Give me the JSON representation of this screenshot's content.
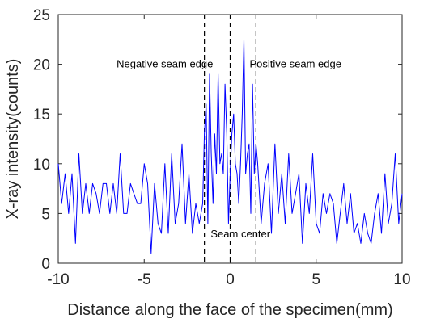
{
  "chart_data": {
    "type": "line",
    "title": "",
    "xlabel": "Distance along the face of the specimen(mm)",
    "ylabel": "X-ray intensity(counts)",
    "xlim": [
      -10,
      10
    ],
    "ylim": [
      0,
      25
    ],
    "x_ticks": [
      -10,
      -5,
      0,
      5,
      10
    ],
    "y_ticks": [
      0,
      5,
      10,
      15,
      20,
      25
    ],
    "grid": false,
    "legend": "none",
    "series": [
      {
        "color": "#0000ff",
        "x": [
          -10,
          -9.8,
          -9.6,
          -9.4,
          -9.2,
          -9,
          -8.8,
          -8.6,
          -8.4,
          -8.2,
          -8,
          -7.8,
          -7.6,
          -7.4,
          -7.2,
          -7,
          -6.8,
          -6.6,
          -6.4,
          -6.2,
          -6,
          -5.8,
          -5.6,
          -5.4,
          -5.2,
          -5,
          -4.8,
          -4.6,
          -4.4,
          -4.2,
          -4,
          -3.8,
          -3.6,
          -3.4,
          -3.2,
          -3,
          -2.8,
          -2.6,
          -2.4,
          -2.2,
          -2,
          -1.8,
          -1.6,
          -1.5,
          -1.4,
          -1.3,
          -1.2,
          -1.1,
          -1,
          -0.9,
          -0.8,
          -0.7,
          -0.6,
          -0.5,
          -0.4,
          -0.3,
          -0.2,
          -0.1,
          0,
          0.1,
          0.2,
          0.3,
          0.4,
          0.5,
          0.6,
          0.7,
          0.8,
          0.9,
          1,
          1.1,
          1.2,
          1.3,
          1.4,
          1.5,
          1.6,
          1.8,
          2,
          2.2,
          2.4,
          2.6,
          2.8,
          3,
          3.2,
          3.4,
          3.6,
          3.8,
          4,
          4.2,
          4.4,
          4.6,
          4.8,
          5,
          5.2,
          5.4,
          5.6,
          5.8,
          6,
          6.2,
          6.4,
          6.6,
          6.8,
          7,
          7.2,
          7.4,
          7.6,
          7.8,
          8,
          8.2,
          8.4,
          8.6,
          8.8,
          9,
          9.2,
          9.4,
          9.6,
          9.8,
          10
        ],
        "y": [
          10,
          6,
          9,
          5,
          9,
          2,
          11,
          5,
          8,
          5,
          8,
          7,
          5,
          8,
          8,
          5,
          8,
          5,
          11,
          5,
          5,
          8,
          7,
          6,
          6,
          10,
          8,
          1,
          8,
          4,
          3,
          10,
          3,
          11,
          4,
          6,
          12,
          4,
          9,
          3,
          6,
          4,
          6,
          13,
          16,
          4,
          19,
          11,
          6,
          13,
          9,
          19,
          10,
          11,
          9,
          18,
          13,
          4,
          9,
          13,
          15,
          10,
          9,
          6,
          10,
          15,
          22.5,
          9,
          11,
          12,
          5,
          18,
          9,
          12,
          10,
          4,
          8,
          10,
          3,
          12,
          5,
          9,
          4,
          11,
          5,
          7,
          9,
          2,
          8,
          5,
          11,
          4,
          3,
          7,
          5,
          7,
          6,
          2,
          5,
          8,
          4,
          7,
          3,
          4,
          2,
          5,
          3,
          2,
          5,
          7,
          3,
          9,
          4,
          6,
          11,
          4,
          7
        ]
      }
    ],
    "vlines": [
      {
        "x": -1.5,
        "style": "dashed"
      },
      {
        "x": 0,
        "style": "dashed"
      },
      {
        "x": 1.5,
        "style": "dashed"
      }
    ],
    "annotations": [
      {
        "text": "Negative seam edge",
        "x": -3.8,
        "y": 19.7
      },
      {
        "text": "Positive seam edge",
        "x": 3.8,
        "y": 19.7
      },
      {
        "text": "Seam center",
        "x": 0.6,
        "y": 2.6
      }
    ]
  }
}
